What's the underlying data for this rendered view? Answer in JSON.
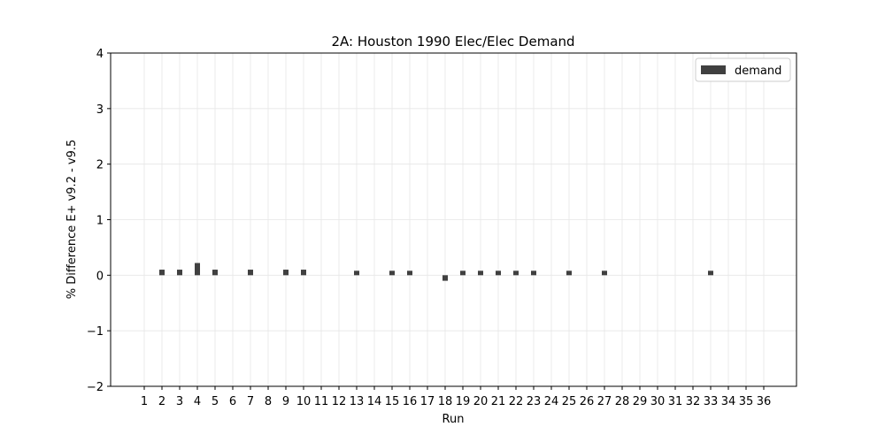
{
  "chart_data": {
    "type": "bar",
    "title": "2A: Houston 1990 Elec/Elec Demand",
    "xlabel": "Run",
    "ylabel": "% Difference E+ v9.2 - v9.5",
    "ylim": [
      -2,
      4
    ],
    "yticks": [
      -2,
      -1,
      0,
      1,
      2,
      3,
      4
    ],
    "grid": true,
    "legend_position": "top-right",
    "bar_color": "#404040",
    "categories": [
      "1",
      "2",
      "3",
      "4",
      "5",
      "6",
      "7",
      "8",
      "9",
      "10",
      "11",
      "12",
      "13",
      "14",
      "15",
      "16",
      "17",
      "18",
      "19",
      "20",
      "21",
      "22",
      "23",
      "24",
      "25",
      "26",
      "27",
      "28",
      "29",
      "30",
      "31",
      "32",
      "33",
      "34",
      "35",
      "36"
    ],
    "series": [
      {
        "name": "demand",
        "values": [
          0,
          0.1,
          0.1,
          0.22,
          0.1,
          0,
          0.1,
          0,
          0.1,
          0.1,
          0,
          0,
          0.08,
          0,
          0.08,
          0.08,
          0,
          -0.1,
          0.08,
          0.08,
          0.08,
          0.08,
          0.08,
          0,
          0.08,
          0,
          0.08,
          0,
          0,
          0,
          0,
          0,
          0.08,
          0,
          0,
          0
        ]
      }
    ]
  }
}
